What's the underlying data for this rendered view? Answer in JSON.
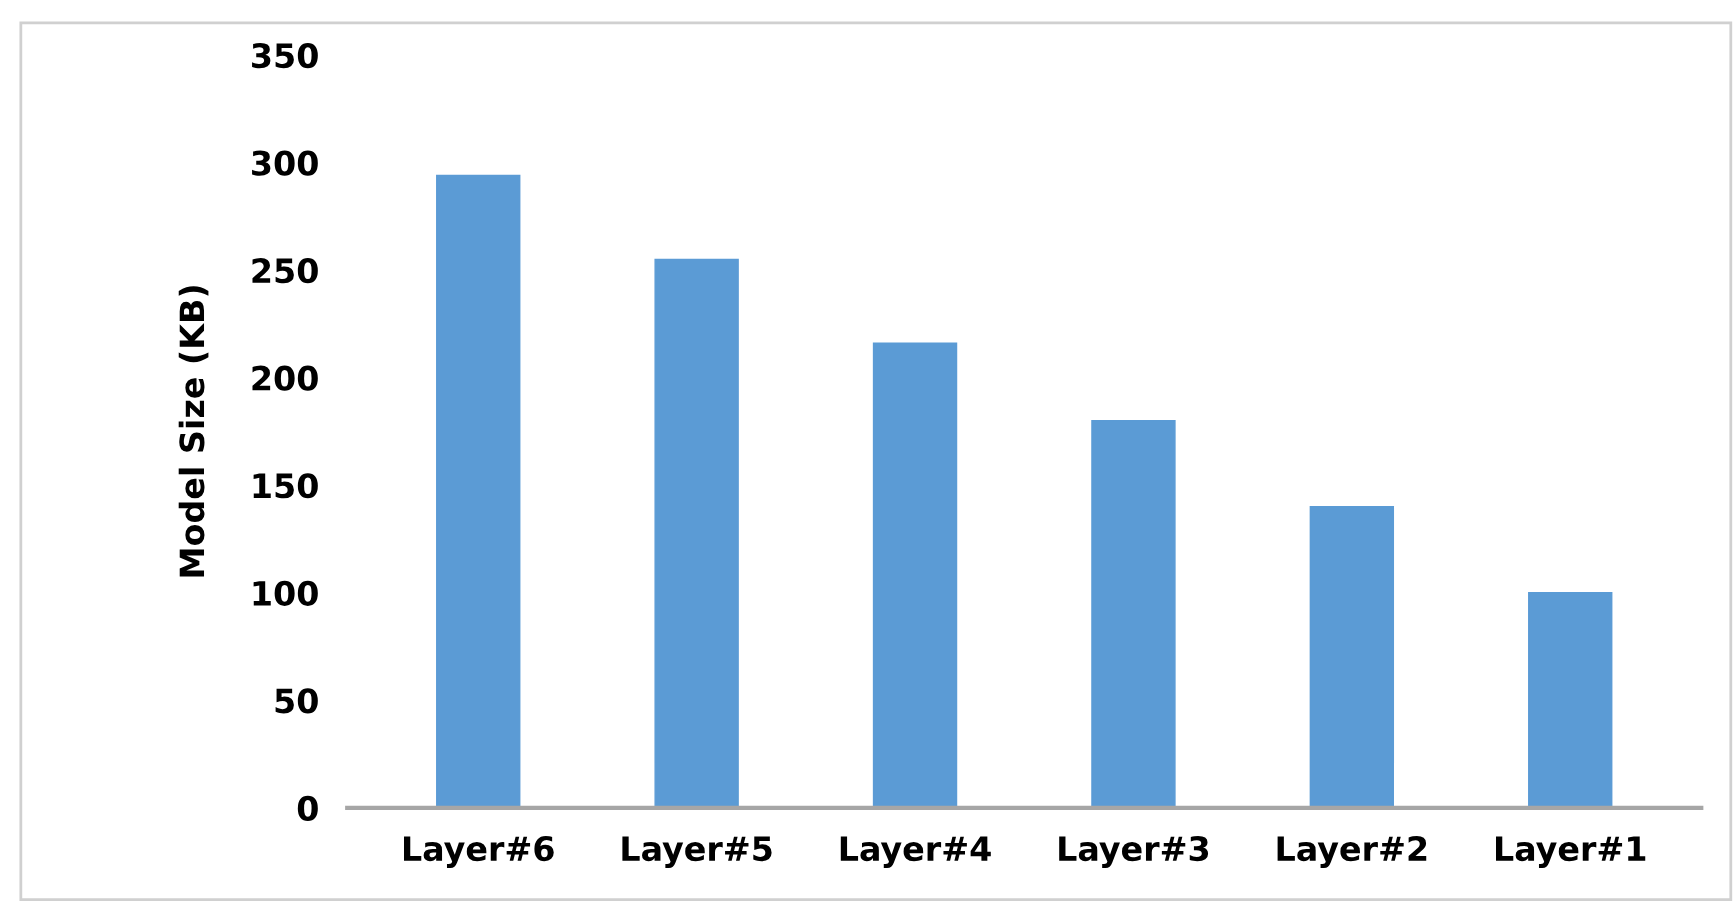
{
  "chart_data": {
    "type": "bar",
    "ylabel": "Model Size (KB)",
    "categories": [
      "Layer#6",
      "Layer#5",
      "Layer#4",
      "Layer#3",
      "Layer#2",
      "Layer#1"
    ],
    "values": [
      294,
      255,
      216,
      180,
      140,
      100
    ],
    "color": "#5b9bd5",
    "ylim": [
      0,
      350
    ],
    "yticks": [
      0,
      50,
      100,
      150,
      200,
      250,
      300,
      350
    ],
    "grid": false
  }
}
